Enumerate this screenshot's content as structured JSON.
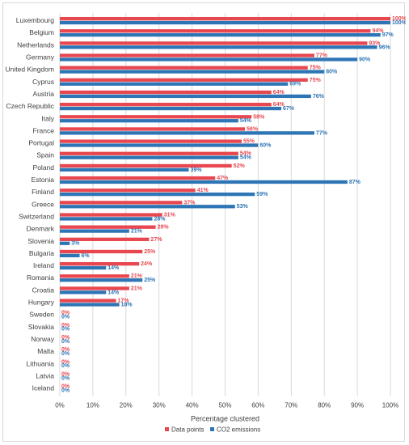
{
  "chart_data": {
    "type": "bar",
    "orientation": "horizontal",
    "categories": [
      "Luxembourg",
      "Belgium",
      "Netherlands",
      "Germany",
      "United Kingdom",
      "Cyprus",
      "Austria",
      "Czech Republic",
      "Italy",
      "France",
      "Portugal",
      "Spain",
      "Poland",
      "Estonia",
      "Finland",
      "Greece",
      "Switzerland",
      "Denmark",
      "Slovenia",
      "Bulgaria",
      "Ireland",
      "Romania",
      "Croatia",
      "Hungary",
      "Sweden",
      "Slovakia",
      "Norway",
      "Malta",
      "Lithuania",
      "Latvia",
      "Iceland"
    ],
    "series": [
      {
        "name": "Data points",
        "color": "#e8474f",
        "values": [
          100,
          94,
          93,
          77,
          75,
          75,
          64,
          64,
          58,
          56,
          55,
          54,
          52,
          47,
          41,
          37,
          31,
          29,
          27,
          25,
          24,
          21,
          21,
          17,
          0,
          0,
          0,
          0,
          0,
          0,
          0
        ]
      },
      {
        "name": "CO2 emissions",
        "color": "#2e75b6",
        "values": [
          100,
          97,
          96,
          90,
          80,
          69,
          76,
          67,
          54,
          77,
          60,
          54,
          39,
          87,
          59,
          53,
          28,
          21,
          3,
          6,
          14,
          25,
          14,
          18,
          0,
          0,
          0,
          0,
          0,
          0,
          0
        ]
      }
    ],
    "value_suffix": "%",
    "xlim": [
      0,
      100
    ],
    "xticks": [
      "0%",
      "10%",
      "20%",
      "30%",
      "40%",
      "50%",
      "60%",
      "70%",
      "80%",
      "90%",
      "100%"
    ],
    "xlabel": "Percentage clustered",
    "grid": true,
    "legend_position": "bottom"
  }
}
